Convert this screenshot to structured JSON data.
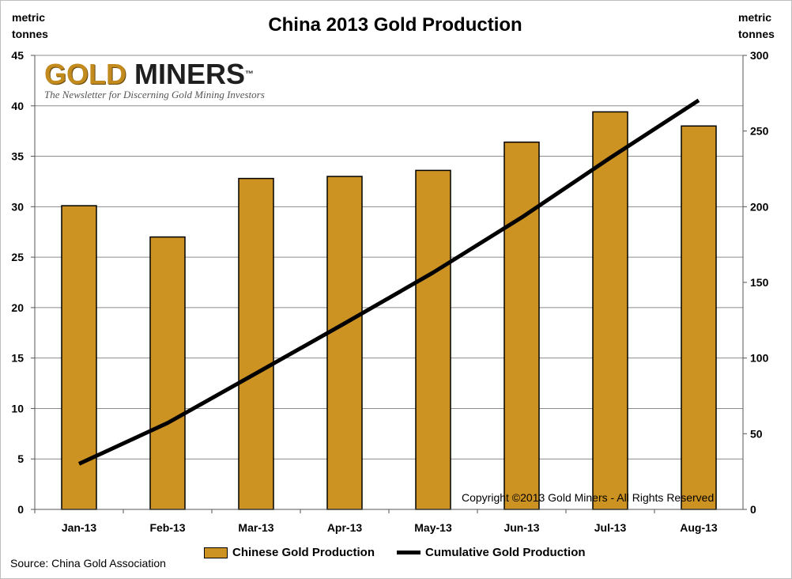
{
  "header": {
    "title": "China 2013 Gold Production",
    "left_unit_line1": "metric",
    "left_unit_line2": "tonnes",
    "right_unit_line1": "metric",
    "right_unit_line2": "tonnes"
  },
  "logo": {
    "word1": "GOLD",
    "word2": "MINERS",
    "trademark": "™",
    "tagline": "The Newsletter for Discerning Gold Mining Investors"
  },
  "copyright": "Copyright ©2013 Gold Miners - All Rights Reserved",
  "source": "Source:  China Gold Association",
  "legend": {
    "bar_label": "Chinese Gold Production",
    "line_label": "Cumulative Gold Production"
  },
  "colors": {
    "bar_fill": "#CC9222",
    "bar_stroke": "#000000",
    "line": "#000000",
    "grid": "#8c8c8c"
  },
  "chart_data": {
    "type": "bar",
    "categories": [
      "Jan-13",
      "Feb-13",
      "Mar-13",
      "Apr-13",
      "May-13",
      "Jun-13",
      "Jul-13",
      "Aug-13"
    ],
    "series": [
      {
        "name": "Chinese Gold Production",
        "type": "bar",
        "axis": "left",
        "values": [
          30.1,
          27.0,
          32.8,
          33.0,
          33.6,
          36.4,
          39.4,
          38.0
        ]
      },
      {
        "name": "Cumulative Gold Production",
        "type": "line",
        "axis": "right",
        "values": [
          30.1,
          57.1,
          89.9,
          122.9,
          156.5,
          192.9,
          232.3,
          270.3
        ]
      }
    ],
    "title": "China 2013 Gold Production",
    "ylabel": "metric tonnes",
    "y2label": "metric tonnes",
    "ylim": [
      0,
      45
    ],
    "y2lim": [
      0,
      300
    ],
    "yticks": [
      0,
      5,
      10,
      15,
      20,
      25,
      30,
      35,
      40,
      45
    ],
    "y2ticks": [
      0,
      50,
      100,
      150,
      200,
      250,
      300
    ],
    "grid": true,
    "legend_position": "bottom"
  }
}
